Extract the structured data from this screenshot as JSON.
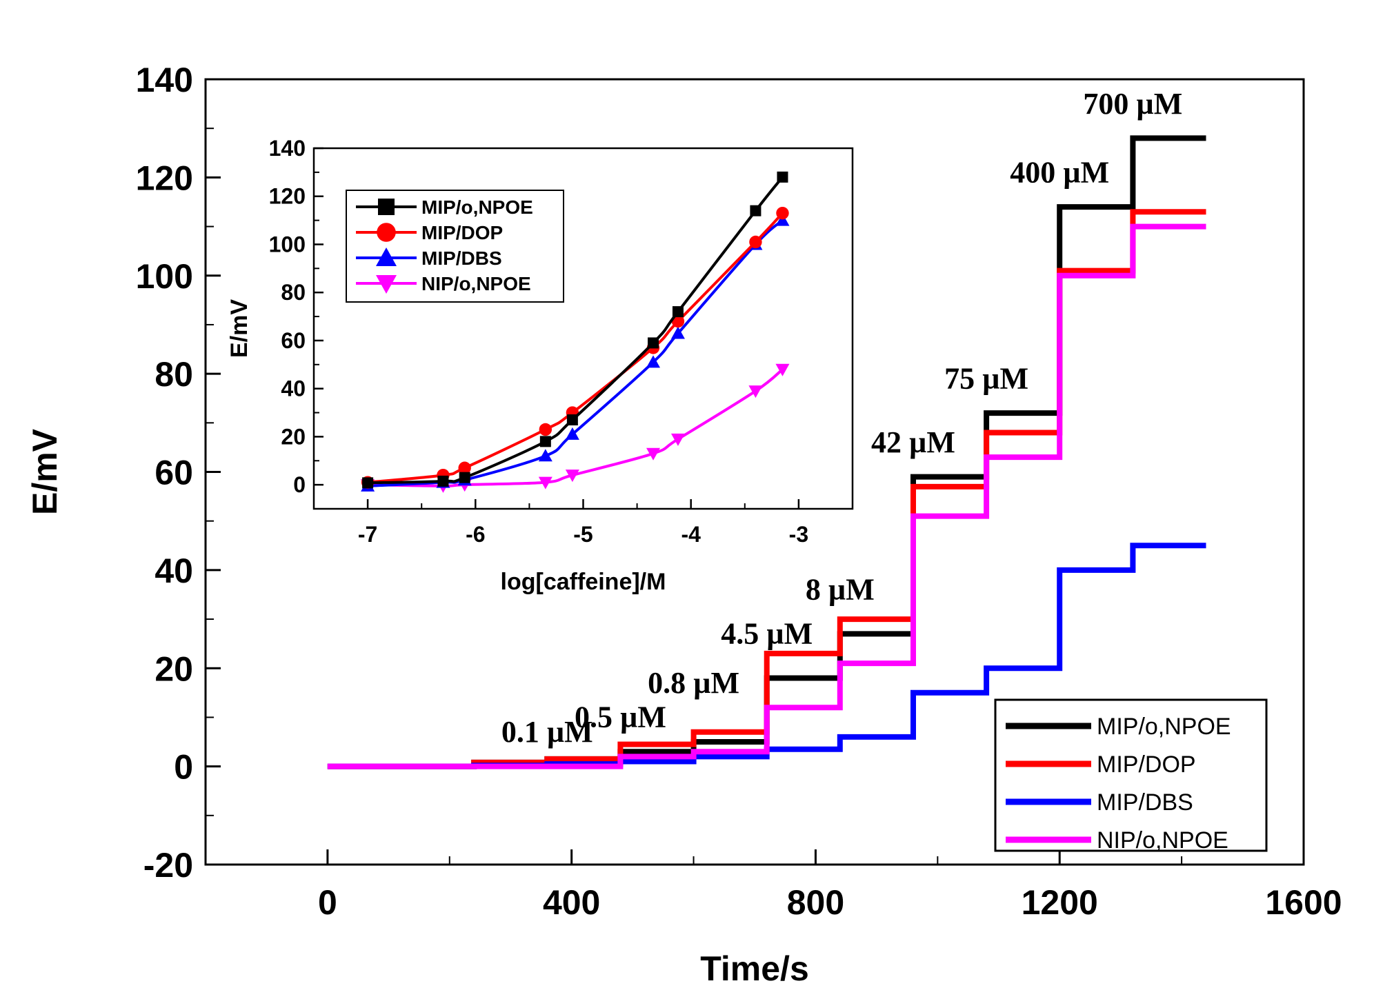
{
  "chart_data": [
    {
      "type": "line",
      "title": "",
      "xlabel": "Time/s",
      "ylabel": "E/mV",
      "xlim": [
        -200,
        1600
      ],
      "ylim": [
        -20,
        140
      ],
      "xticks": [
        0,
        400,
        800,
        1200,
        1600
      ],
      "yticks": [
        -20,
        0,
        20,
        40,
        60,
        80,
        100,
        120,
        140
      ],
      "grid": false,
      "legend_position": "bottom-right",
      "series": [
        {
          "name": "MIP/o,NPOE",
          "color": "#000000",
          "x": [
            0,
            240,
            240,
            360,
            360,
            480,
            480,
            600,
            600,
            720,
            720,
            840,
            840,
            960,
            960,
            1080,
            1080,
            1200,
            1200,
            1320,
            1320,
            1440
          ],
          "y": [
            0,
            0,
            0.8,
            0.8,
            1.5,
            1.5,
            3,
            3,
            5,
            5,
            18,
            18,
            27,
            27,
            59,
            59,
            72,
            72,
            114,
            114,
            128,
            128
          ]
        },
        {
          "name": "MIP/DOP",
          "color": "#ff0000",
          "x": [
            0,
            240,
            240,
            360,
            360,
            480,
            480,
            600,
            600,
            720,
            720,
            840,
            840,
            960,
            960,
            1080,
            1080,
            1200,
            1200,
            1320,
            1320,
            1440
          ],
          "y": [
            0,
            0,
            0.8,
            0.8,
            1.5,
            1.5,
            4.5,
            4.5,
            7,
            7,
            23,
            23,
            30,
            30,
            57,
            57,
            68,
            68,
            101,
            101,
            113,
            113
          ]
        },
        {
          "name": "MIP/DBS",
          "color": "#0000ff",
          "x": [
            0,
            240,
            240,
            360,
            360,
            480,
            480,
            600,
            600,
            720,
            720,
            840,
            840,
            960,
            960,
            1080,
            1080,
            1200,
            1200,
            1320,
            1320,
            1440
          ],
          "y": [
            0,
            0,
            0.2,
            0.2,
            0.5,
            0.5,
            1,
            1,
            2,
            2,
            3.5,
            3.5,
            6,
            6,
            15,
            15,
            20,
            20,
            40,
            40,
            45,
            45
          ]
        },
        {
          "name": "NIP/o,NPOE",
          "color": "#ff00ff",
          "x": [
            0,
            480,
            480,
            600,
            600,
            720,
            720,
            840,
            840,
            960,
            960,
            1080,
            1080,
            1200,
            1200,
            1320,
            1320,
            1440
          ],
          "y": [
            0,
            0,
            2,
            2,
            3,
            3,
            12,
            12,
            21,
            21,
            51,
            51,
            63,
            63,
            100,
            100,
            110,
            110
          ]
        }
      ],
      "annotations": [
        {
          "text": "0.1 µM",
          "x": 360,
          "y": 5
        },
        {
          "text": "0.5 µM",
          "x": 480,
          "y": 8
        },
        {
          "text": "0.8 µM",
          "x": 600,
          "y": 15
        },
        {
          "text": "4.5 µM",
          "x": 720,
          "y": 25
        },
        {
          "text": "8 µM",
          "x": 840,
          "y": 34
        },
        {
          "text": "42 µM",
          "x": 960,
          "y": 64
        },
        {
          "text": "75 µM",
          "x": 1080,
          "y": 77
        },
        {
          "text": "400 µM",
          "x": 1200,
          "y": 119
        },
        {
          "text": "700 µM",
          "x": 1320,
          "y": 133
        }
      ]
    },
    {
      "type": "line",
      "title": "",
      "xlabel": "log[caffeine]/M",
      "ylabel": "E/mV",
      "xlim": [
        -7.5,
        -2.5
      ],
      "ylim": [
        -10,
        140
      ],
      "xticks": [
        -7,
        -6,
        -5,
        -4,
        -3
      ],
      "yticks": [
        0,
        20,
        40,
        60,
        80,
        100,
        120,
        140
      ],
      "grid": false,
      "legend_position": "top-left",
      "series": [
        {
          "name": "MIP/o,NPOE",
          "color": "#000000",
          "marker": "square",
          "x": [
            -7,
            -6.3,
            -6.1,
            -5.35,
            -5.1,
            -4.35,
            -4.12,
            -3.4,
            -3.15
          ],
          "y": [
            0.8,
            1.5,
            3,
            18,
            27,
            59,
            72,
            114,
            128
          ]
        },
        {
          "name": "MIP/DOP",
          "color": "#ff0000",
          "marker": "circle",
          "x": [
            -7,
            -6.3,
            -6.1,
            -5.35,
            -5.1,
            -4.35,
            -4.12,
            -3.4,
            -3.15
          ],
          "y": [
            1,
            4,
            7,
            23,
            30,
            57,
            68,
            101,
            113
          ]
        },
        {
          "name": "MIP/DBS",
          "color": "#0000ff",
          "marker": "triangle-up",
          "x": [
            -7,
            -6.3,
            -6.1,
            -5.35,
            -5.1,
            -4.35,
            -4.12,
            -3.4,
            -3.15
          ],
          "y": [
            -0.5,
            1,
            2,
            12,
            21,
            51,
            63,
            100,
            110
          ]
        },
        {
          "name": "NIP/o,NPOE",
          "color": "#ff00ff",
          "marker": "triangle-down",
          "x": [
            -7,
            -6.3,
            -6.1,
            -5.35,
            -5.1,
            -4.35,
            -4.12,
            -3.4,
            -3.15
          ],
          "y": [
            0,
            -0.5,
            0,
            1,
            4,
            13,
            19,
            39,
            48
          ]
        }
      ]
    }
  ]
}
